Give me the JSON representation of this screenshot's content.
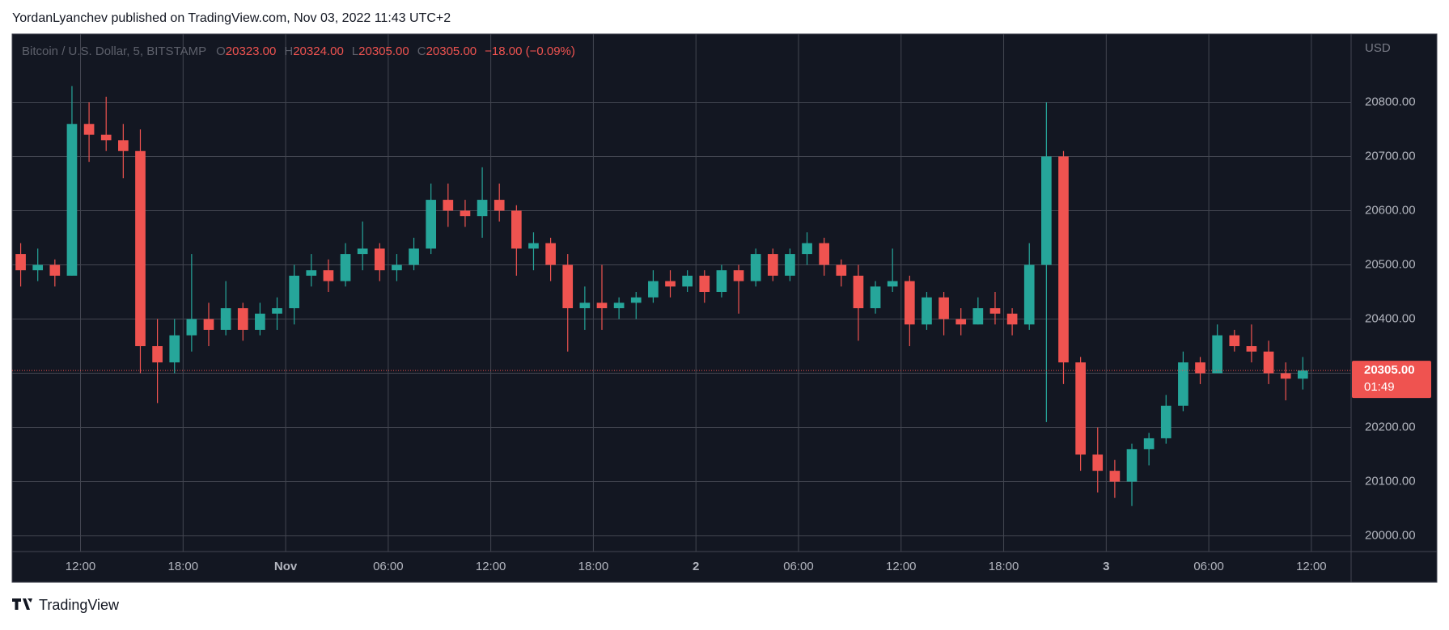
{
  "header": {
    "byline": "YordanLyanchev published on TradingView.com, Nov 03, 2022 11:43 UTC+2"
  },
  "chart_data": {
    "type": "candlestick",
    "title": "Bitcoin / U.S. Dollar, 5, BITSTAMP",
    "ohlc_legend": [
      {
        "key": "O",
        "value": {
          "value": 20323,
          "label": "20323.00"
        }
      },
      {
        "key": "H",
        "value": {
          "value": 20324,
          "label": "20324.00"
        }
      },
      {
        "key": "L",
        "value": {
          "value": 20305,
          "label": "20305.00"
        }
      },
      {
        "key": "C",
        "value": {
          "value": 20305,
          "label": "20305.00"
        }
      }
    ],
    "change": "−18.00 (−0.09%)",
    "categories": [
      null,
      null,
      null,
      null,
      "12:00",
      null,
      null,
      null,
      null,
      null,
      "18:00",
      null,
      null,
      null,
      null,
      null,
      "Nov",
      null,
      null,
      null,
      null,
      null,
      "06:00",
      null,
      null,
      null,
      null,
      null,
      "12:00",
      null,
      null,
      null,
      null,
      null,
      "18:00",
      null,
      null,
      null,
      null,
      null,
      "2",
      null,
      null,
      null,
      null,
      null,
      "06:00",
      null,
      null,
      null,
      null,
      null,
      "12:00",
      null,
      null,
      null,
      null,
      null,
      "18:00",
      null,
      null,
      null,
      null,
      null,
      "3",
      null,
      null,
      null,
      null,
      null,
      "06:00",
      null,
      null,
      null,
      null,
      null,
      "12:00"
    ],
    "open": [
      20520,
      20490,
      20500,
      20480,
      20760,
      20740,
      20730,
      20710,
      20350,
      20320,
      20370,
      20400,
      20380,
      20420,
      20380,
      20410,
      20420,
      20480,
      20490,
      20470,
      20520,
      20530,
      20490,
      20500,
      20530,
      20620,
      20600,
      20590,
      20620,
      20600,
      20530,
      20540,
      20500,
      20420,
      20430,
      20420,
      20430,
      20440,
      20470,
      20460,
      20480,
      20450,
      20490,
      20470,
      20520,
      20480,
      20520,
      20540,
      20500,
      20480,
      20420,
      20460,
      20470,
      20390,
      20440,
      20400,
      20390,
      20420,
      20410,
      20390,
      20500,
      20700,
      20320,
      20150,
      20120,
      20100,
      20160,
      20180,
      20240,
      20320,
      20300,
      20370,
      20350,
      20340,
      20300,
      20290,
      null
    ],
    "high": [
      20540,
      20530,
      20510,
      20830,
      20800,
      20810,
      20760,
      20750,
      20400,
      20400,
      20520,
      20430,
      20470,
      20430,
      20430,
      20440,
      20500,
      20520,
      20510,
      20540,
      20580,
      20540,
      20520,
      20550,
      20650,
      20650,
      20620,
      20680,
      20650,
      20610,
      20560,
      20550,
      20520,
      20460,
      20500,
      20440,
      20450,
      20490,
      20490,
      20490,
      20490,
      20500,
      20500,
      20530,
      20530,
      20530,
      20560,
      20550,
      20510,
      20500,
      20470,
      20530,
      20480,
      20450,
      20450,
      20420,
      20440,
      20450,
      20420,
      20540,
      20800,
      20710,
      20330,
      20200,
      20140,
      20170,
      20190,
      20260,
      20340,
      20330,
      20390,
      20380,
      20390,
      20360,
      20320,
      20330,
      null
    ],
    "low": [
      20460,
      20470,
      20460,
      20480,
      20690,
      20710,
      20660,
      20300,
      20245,
      20300,
      20340,
      20350,
      20370,
      20360,
      20370,
      20380,
      20390,
      20460,
      20450,
      20460,
      20490,
      20470,
      20470,
      20490,
      20520,
      20570,
      20570,
      20550,
      20580,
      20480,
      20490,
      20470,
      20340,
      20380,
      20380,
      20400,
      20400,
      20430,
      20440,
      20450,
      20430,
      20440,
      20410,
      20460,
      20470,
      20470,
      20500,
      20480,
      20460,
      20360,
      20410,
      20450,
      20350,
      20380,
      20370,
      20370,
      20390,
      20390,
      20370,
      20380,
      20210,
      20280,
      20120,
      20080,
      20070,
      20055,
      20130,
      20170,
      20230,
      20280,
      20300,
      20340,
      20320,
      20280,
      20250,
      20270,
      null
    ],
    "close": [
      20490,
      20500,
      20480,
      20760,
      20740,
      20730,
      20710,
      20350,
      20320,
      20370,
      20400,
      20380,
      20420,
      20380,
      20410,
      20420,
      20480,
      20490,
      20470,
      20520,
      20530,
      20490,
      20500,
      20530,
      20620,
      20600,
      20590,
      20620,
      20600,
      20530,
      20540,
      20500,
      20420,
      20430,
      20420,
      20430,
      20440,
      20470,
      20460,
      20480,
      20450,
      20490,
      20470,
      20520,
      20480,
      20520,
      20540,
      20500,
      20480,
      20420,
      20460,
      20470,
      20390,
      20440,
      20400,
      20390,
      20420,
      20410,
      20390,
      20500,
      20700,
      20320,
      20150,
      20120,
      20100,
      20160,
      20180,
      20240,
      20320,
      20300,
      20370,
      20350,
      20340,
      20300,
      20290,
      20305,
      null
    ],
    "up_color": "#26a69a",
    "down_color": "#ef5350",
    "ylim": [
      19971,
      20926
    ],
    "yticks": [
      {
        "value": 20000,
        "label": "20000.00"
      },
      {
        "value": 20100,
        "label": "20100.00"
      },
      {
        "value": 20200,
        "label": "20200.00"
      },
      {
        "value": 20300,
        "label": "20300.00"
      },
      {
        "value": 20400,
        "label": "20400.00"
      },
      {
        "value": 20500,
        "label": "20500.00"
      },
      {
        "value": 20600,
        "label": "20600.00"
      },
      {
        "value": 20700,
        "label": "20700.00"
      },
      {
        "value": 20800,
        "label": "20800.00"
      }
    ],
    "y_unit": "USD",
    "last_price": {
      "value": 20305,
      "label": "20305.00"
    },
    "countdown": "01:49",
    "grid": true
  },
  "footer": {
    "brand": "TradingView"
  }
}
